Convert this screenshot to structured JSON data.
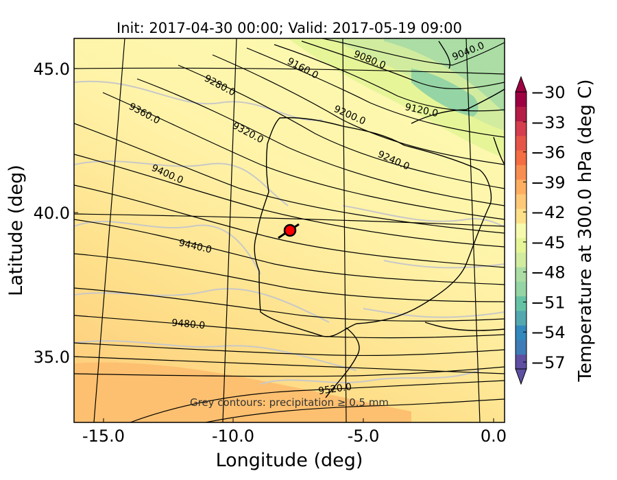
{
  "title": "Init: 2017-04-30 00:00; Valid: 2017-05-19 09:00",
  "axes": {
    "xlabel": "Longitude (deg)",
    "ylabel": "Latitude (deg)",
    "xticks": [
      "-15.0",
      "-10.0",
      "-5.0",
      "0.0"
    ],
    "yticks": [
      "45.0",
      "40.0",
      "35.0"
    ]
  },
  "annotation": "Grey contours: precipitation ≥ 0.5 mm",
  "colorbar": {
    "label": "Temperature at 300.0 hPa (deg C)",
    "ticks": [
      "−30",
      "−33",
      "−36",
      "−39",
      "−42",
      "−45",
      "−48",
      "−51",
      "−54",
      "−57"
    ],
    "colors": [
      "#5e4fa2",
      "#3f7bb7",
      "#3288bd",
      "#52a8ae",
      "#66c2a5",
      "#95d4a4",
      "#abdda4",
      "#d1ec9f",
      "#e6f598",
      "#f6faaf",
      "#fee08b",
      "#fdc877",
      "#fdae61",
      "#f88d52",
      "#f46d43",
      "#e55649",
      "#d53e4f",
      "#b51d46",
      "#9e0142"
    ]
  },
  "contours": [
    {
      "label": "9040.0"
    },
    {
      "label": "9080.0"
    },
    {
      "label": "9120.0"
    },
    {
      "label": "9160.0"
    },
    {
      "label": "9200.0"
    },
    {
      "label": "9240.0"
    },
    {
      "label": "9280.0"
    },
    {
      "label": "9320.0"
    },
    {
      "label": "9360.0"
    },
    {
      "label": "9400.0"
    },
    {
      "label": "9440.0"
    },
    {
      "label": "9480.0"
    },
    {
      "label": "9520.0"
    }
  ],
  "marker": {
    "label": "location marker",
    "color": "#ff0000"
  }
}
